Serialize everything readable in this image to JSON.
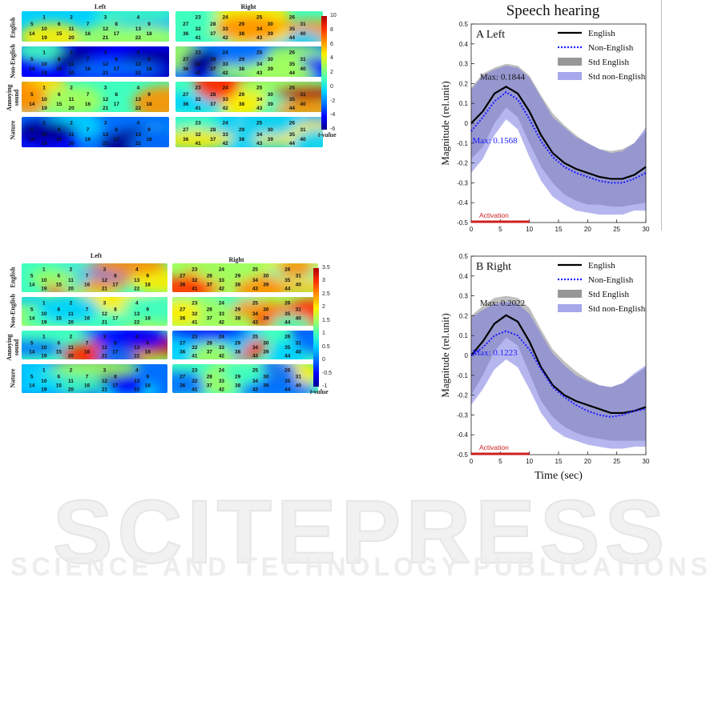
{
  "watermark": {
    "title": "SCITEPRESS",
    "subtitle": "SCIENCE AND TECHNOLOGY PUBLICATIONS"
  },
  "heatmap_top": {
    "left_label": "Left",
    "right_label": "Right",
    "rows": [
      "English",
      "Non-English",
      "Annoying sound",
      "Nature"
    ],
    "cbar_ticks": [
      "10",
      "8",
      "6",
      "4",
      "2",
      "0",
      "-2",
      "-4",
      "-6"
    ],
    "cbar_label": "t-value",
    "left_channels": [
      "1",
      "2",
      "3",
      "4",
      "5",
      "6",
      "7",
      "8",
      "9",
      "10",
      "11",
      "12",
      "13",
      "14",
      "15",
      "16",
      "17",
      "18",
      "19",
      "20",
      "21",
      "22"
    ],
    "right_channels": [
      "23",
      "24",
      "25",
      "26",
      "27",
      "28",
      "29",
      "30",
      "31",
      "32",
      "33",
      "34",
      "35",
      "36",
      "37",
      "38",
      "39",
      "40",
      "41",
      "42",
      "43",
      "44"
    ]
  },
  "heatmap_bottom": {
    "left_label": "Left",
    "right_label": "Right",
    "rows": [
      "English",
      "Non-English",
      "Annoying sound",
      "Nature"
    ],
    "cbar_ticks": [
      "3.5",
      "3",
      "2.5",
      "2",
      "1.5",
      "1",
      "0.5",
      "0",
      "-0.5",
      "-1"
    ],
    "cbar_label": "t-value",
    "left_channels": [
      "1",
      "2",
      "3",
      "4",
      "5",
      "6",
      "7",
      "8",
      "9",
      "10",
      "11",
      "12",
      "13",
      "14",
      "15",
      "16",
      "17",
      "18",
      "19",
      "20",
      "21",
      "22"
    ],
    "right_channels": [
      "23",
      "24",
      "25",
      "26",
      "27",
      "28",
      "29",
      "30",
      "31",
      "32",
      "33",
      "34",
      "35",
      "36",
      "37",
      "38",
      "39",
      "40",
      "41",
      "42",
      "43",
      "44"
    ]
  },
  "line_panel": {
    "title": "Speech hearing",
    "xlabel": "Time (sec)",
    "ylabel": "Magnitude (rel.unit)",
    "activation_label": "Activation",
    "colors": {
      "english": "#000000",
      "non_english": "#1a1aff",
      "std_english": "#8c8c8c",
      "std_non_english": "#6d6de0",
      "activation": "#cc1f1f"
    }
  },
  "chart_data": [
    {
      "type": "line",
      "panel": "A Left",
      "title": "A Left",
      "xlabel": "",
      "ylabel": "Magnitude (rel.unit)",
      "xlim": [
        0,
        30
      ],
      "ylim": [
        -0.5,
        0.5
      ],
      "xticks": [
        "0",
        "5",
        "10",
        "15",
        "20",
        "25",
        "30"
      ],
      "yticks": [
        "0.5",
        "0.4",
        "0.3",
        "0.2",
        "0.1",
        "0",
        "-0.1",
        "-0.2",
        "-0.3",
        "-0.4",
        "-0.5"
      ],
      "legend": [
        "English",
        "Non-English",
        "Std English",
        "Std non-English"
      ],
      "x": [
        0,
        2,
        4,
        6,
        8,
        10,
        12,
        14,
        16,
        18,
        20,
        22,
        24,
        26,
        28,
        30
      ],
      "series": [
        {
          "name": "English",
          "values": [
            0.0,
            0.06,
            0.15,
            0.1844,
            0.15,
            0.06,
            -0.06,
            -0.15,
            -0.2,
            -0.23,
            -0.25,
            -0.27,
            -0.28,
            -0.28,
            -0.26,
            -0.22
          ]
        },
        {
          "name": "Non-English",
          "values": [
            -0.04,
            0.03,
            0.11,
            0.1568,
            0.12,
            0.02,
            -0.09,
            -0.17,
            -0.22,
            -0.25,
            -0.27,
            -0.29,
            -0.3,
            -0.3,
            -0.28,
            -0.25
          ]
        },
        {
          "name": "Std English",
          "upper": [
            0.18,
            0.25,
            0.28,
            0.3,
            0.29,
            0.24,
            0.14,
            0.05,
            -0.01,
            -0.06,
            -0.1,
            -0.13,
            -0.14,
            -0.13,
            -0.1,
            -0.04
          ],
          "lower": [
            -0.18,
            -0.12,
            0.0,
            0.08,
            0.03,
            -0.1,
            -0.22,
            -0.3,
            -0.36,
            -0.39,
            -0.41,
            -0.41,
            -0.42,
            -0.42,
            -0.41,
            -0.4
          ]
        },
        {
          "name": "Std non-English",
          "upper": [
            0.17,
            0.24,
            0.27,
            0.29,
            0.28,
            0.23,
            0.13,
            0.03,
            -0.02,
            -0.07,
            -0.1,
            -0.13,
            -0.15,
            -0.14,
            -0.1,
            -0.02
          ],
          "lower": [
            -0.25,
            -0.18,
            -0.06,
            0.02,
            -0.03,
            -0.17,
            -0.29,
            -0.37,
            -0.41,
            -0.44,
            -0.45,
            -0.46,
            -0.46,
            -0.46,
            -0.44,
            -0.44
          ]
        }
      ],
      "annotations": [
        {
          "text": "Max: 0.1844",
          "x": 1.5,
          "y": 0.22
        },
        {
          "text": "Max: 0.1568",
          "x": 0.2,
          "y": -0.1
        }
      ],
      "activation": {
        "label": "Activation",
        "from": 0,
        "to": 10,
        "y": -0.5
      }
    },
    {
      "type": "line",
      "panel": "B Right",
      "title": "B Right",
      "xlabel": "Time (sec)",
      "ylabel": "Magnitude (rel.unit)",
      "xlim": [
        0,
        30
      ],
      "ylim": [
        -0.5,
        0.5
      ],
      "xticks": [
        "0",
        "5",
        "10",
        "15",
        "20",
        "25",
        "30"
      ],
      "yticks": [
        "0.5",
        "0.4",
        "0.3",
        "0.2",
        "0.1",
        "0",
        "-0.1",
        "-0.2",
        "-0.3",
        "-0.4",
        "-0.5"
      ],
      "legend": [
        "English",
        "Non-English",
        "Std English",
        "Std non-English"
      ],
      "x": [
        0,
        2,
        4,
        6,
        8,
        10,
        12,
        14,
        16,
        18,
        20,
        22,
        24,
        26,
        28,
        30
      ],
      "series": [
        {
          "name": "English",
          "values": [
            0.0,
            0.07,
            0.16,
            0.2022,
            0.17,
            0.07,
            -0.06,
            -0.15,
            -0.2,
            -0.23,
            -0.25,
            -0.27,
            -0.29,
            -0.29,
            -0.28,
            -0.26
          ]
        },
        {
          "name": "Non-English",
          "values": [
            0.0,
            0.04,
            0.1,
            0.1223,
            0.1,
            0.03,
            -0.07,
            -0.16,
            -0.21,
            -0.25,
            -0.28,
            -0.3,
            -0.31,
            -0.3,
            -0.28,
            -0.27
          ]
        },
        {
          "name": "Std English",
          "upper": [
            0.2,
            0.25,
            0.29,
            0.3,
            0.29,
            0.24,
            0.13,
            0.03,
            -0.03,
            -0.08,
            -0.12,
            -0.15,
            -0.16,
            -0.14,
            -0.1,
            -0.06
          ],
          "lower": [
            -0.2,
            -0.1,
            0.02,
            0.09,
            0.05,
            -0.09,
            -0.23,
            -0.31,
            -0.36,
            -0.39,
            -0.41,
            -0.42,
            -0.43,
            -0.43,
            -0.43,
            -0.43
          ]
        },
        {
          "name": "Std non-English",
          "upper": [
            0.19,
            0.23,
            0.26,
            0.27,
            0.26,
            0.21,
            0.11,
            0.01,
            -0.05,
            -0.1,
            -0.13,
            -0.15,
            -0.16,
            -0.14,
            -0.09,
            -0.05
          ],
          "lower": [
            -0.25,
            -0.17,
            -0.07,
            -0.02,
            -0.06,
            -0.17,
            -0.29,
            -0.37,
            -0.41,
            -0.43,
            -0.45,
            -0.46,
            -0.47,
            -0.47,
            -0.46,
            -0.46
          ]
        }
      ],
      "annotations": [
        {
          "text": "Max: 0.2022",
          "x": 1.5,
          "y": 0.25
        },
        {
          "text": "Max: 0.1223",
          "x": 0.2,
          "y": 0.0
        }
      ],
      "activation": {
        "label": "Activation",
        "from": 0,
        "to": 10,
        "y": -0.5
      }
    }
  ]
}
